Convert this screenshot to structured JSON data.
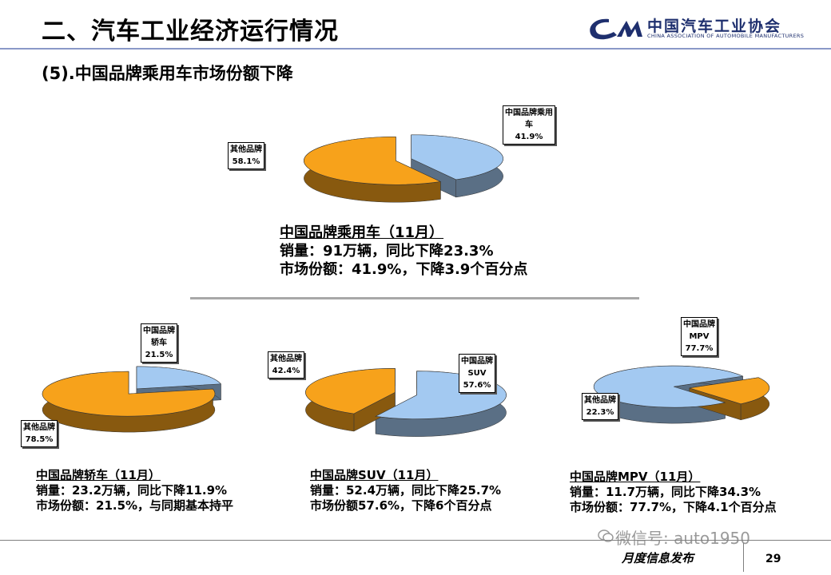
{
  "header": {
    "title": "二、汽车工业经济运行情况",
    "subtitle": "(5).中国品牌乘用车市场份额下降",
    "logo_name": "中国汽车工业协会",
    "logo_english": "CHINA ASSOCIATION OF AUTOMOBILE MANUFACTURERS"
  },
  "colors": {
    "brand_blue": "#a3c9f1",
    "other_orange": "#f7a21b",
    "logo_navy": "#1e2f6e"
  },
  "chart_data": [
    {
      "type": "pie",
      "slices": [
        {
          "label": "中国品牌乘用车",
          "value": 41.9,
          "value_text": "41.9%",
          "color": "#a3c9f1"
        },
        {
          "label": "其他品牌",
          "value": 58.1,
          "value_text": "58.1%",
          "color": "#f7a21b"
        }
      ],
      "callouts": [
        {
          "lines": [
            "中国品牌乘用",
            "车",
            "41.9%"
          ]
        },
        {
          "lines": [
            "其他品牌",
            "58.1%"
          ]
        }
      ],
      "text_block": [
        "中国品牌乘用车（11月）",
        "销量：91万辆，同比下降23.3%",
        "市场份额：41.9%，下降3.9个百分点"
      ]
    },
    {
      "type": "pie",
      "slices": [
        {
          "label": "中国品牌轿车",
          "value": 21.5,
          "value_text": "21.5%",
          "color": "#a3c9f1"
        },
        {
          "label": "其他品牌",
          "value": 78.5,
          "value_text": "78.5%",
          "color": "#f7a21b"
        }
      ],
      "callouts": [
        {
          "lines": [
            "中国品牌",
            "轿车",
            "21.5%"
          ]
        },
        {
          "lines": [
            "其他品牌",
            "78.5%"
          ]
        }
      ],
      "text_block": [
        "中国品牌轿车（11月）",
        "销量：23.2万辆，同比下降11.9%",
        "市场份额：21.5%，与同期基本持平"
      ]
    },
    {
      "type": "pie",
      "slices": [
        {
          "label": "中国品牌SUV",
          "value": 57.6,
          "value_text": "57.6%",
          "color": "#a3c9f1"
        },
        {
          "label": "其他品牌",
          "value": 42.4,
          "value_text": "42.4%",
          "color": "#f7a21b"
        }
      ],
      "callouts": [
        {
          "lines": [
            "中国品牌",
            "SUV",
            "57.6%"
          ]
        },
        {
          "lines": [
            "其他品牌",
            "42.4%"
          ]
        }
      ],
      "text_block": [
        "中国品牌SUV（11月）",
        "销量：52.4万辆，同比下降25.7%",
        "市场份额57.6%，下降6个百分点"
      ]
    },
    {
      "type": "pie",
      "slices": [
        {
          "label": "中国品牌MPV",
          "value": 77.7,
          "value_text": "77.7%",
          "color": "#a3c9f1"
        },
        {
          "label": "其他品牌",
          "value": 22.3,
          "value_text": "22.3%",
          "color": "#f7a21b"
        }
      ],
      "callouts": [
        {
          "lines": [
            "中国品牌",
            "MPV",
            "77.7%"
          ]
        },
        {
          "lines": [
            "其他品牌",
            "22.3%"
          ]
        }
      ],
      "text_block": [
        "中国品牌MPV（11月）",
        "销量：11.7万辆，同比下降34.3%",
        "市场份额：77.7%，下降4.1个百分点"
      ]
    }
  ],
  "footer": {
    "label": "月度信息发布",
    "page": "29",
    "watermark": "微信号: auto1950"
  }
}
